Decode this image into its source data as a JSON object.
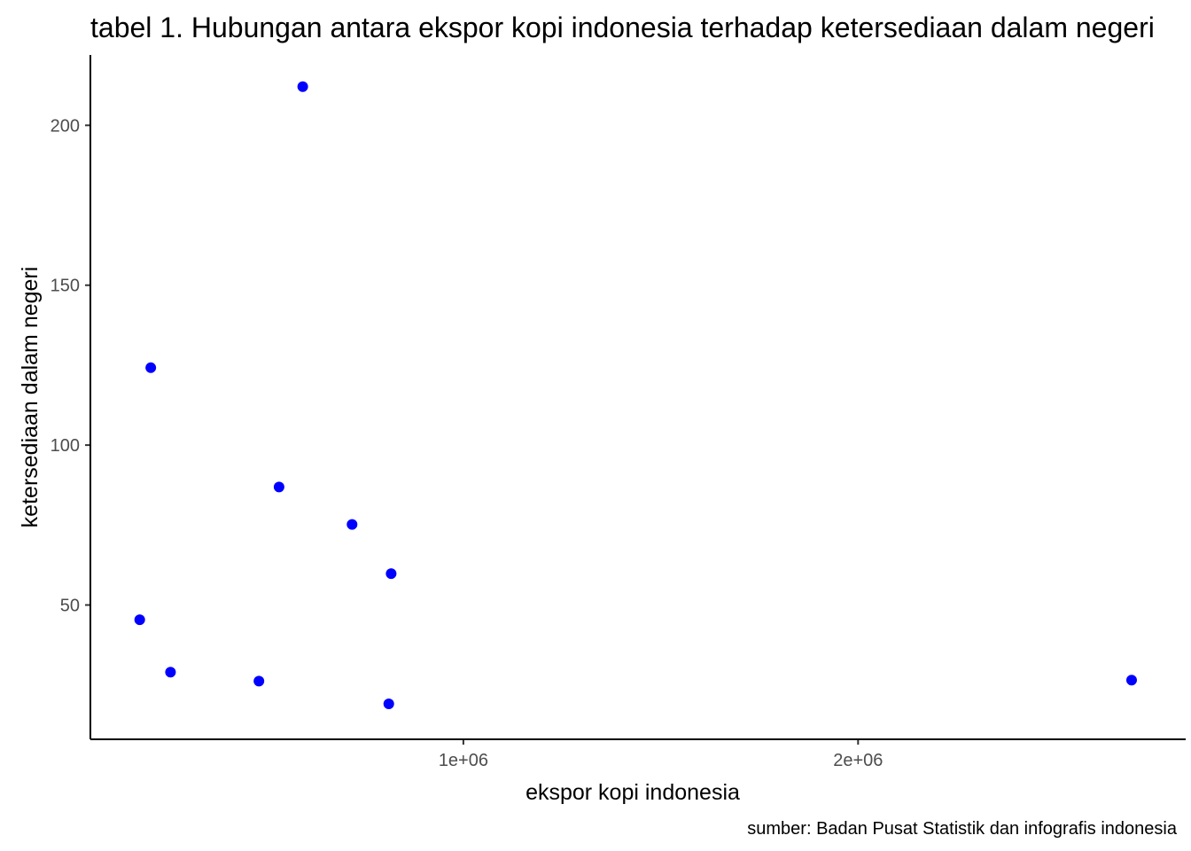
{
  "chart_data": {
    "type": "scatter",
    "title": "tabel 1. Hubungan antara ekspor kopi indonesia terhadap ketersediaan dalam negeri",
    "xlabel": "ekspor kopi indonesia",
    "ylabel": "ketersediaan dalam negeri",
    "caption": "sumber: Badan Pusat Statistik dan infografis indonesia",
    "xlim": [
      55000,
      2830000
    ],
    "ylim": [
      8,
      222
    ],
    "x_ticks": [
      {
        "value": 1000000,
        "label": "1e+06"
      },
      {
        "value": 2000000,
        "label": "2e+06"
      }
    ],
    "y_ticks": [
      {
        "value": 50,
        "label": "50"
      },
      {
        "value": 100,
        "label": "100"
      },
      {
        "value": 150,
        "label": "150"
      },
      {
        "value": 200,
        "label": "200"
      }
    ],
    "grid": false,
    "point_color": "#0000ff",
    "points": [
      {
        "x": 180000,
        "y": 45.4
      },
      {
        "x": 208000,
        "y": 124.2
      },
      {
        "x": 258000,
        "y": 29
      },
      {
        "x": 482000,
        "y": 26.2
      },
      {
        "x": 533000,
        "y": 86.9
      },
      {
        "x": 593000,
        "y": 212.1
      },
      {
        "x": 718000,
        "y": 75.2
      },
      {
        "x": 811000,
        "y": 19.1
      },
      {
        "x": 817000,
        "y": 59.8
      },
      {
        "x": 2693000,
        "y": 26.5
      }
    ]
  }
}
